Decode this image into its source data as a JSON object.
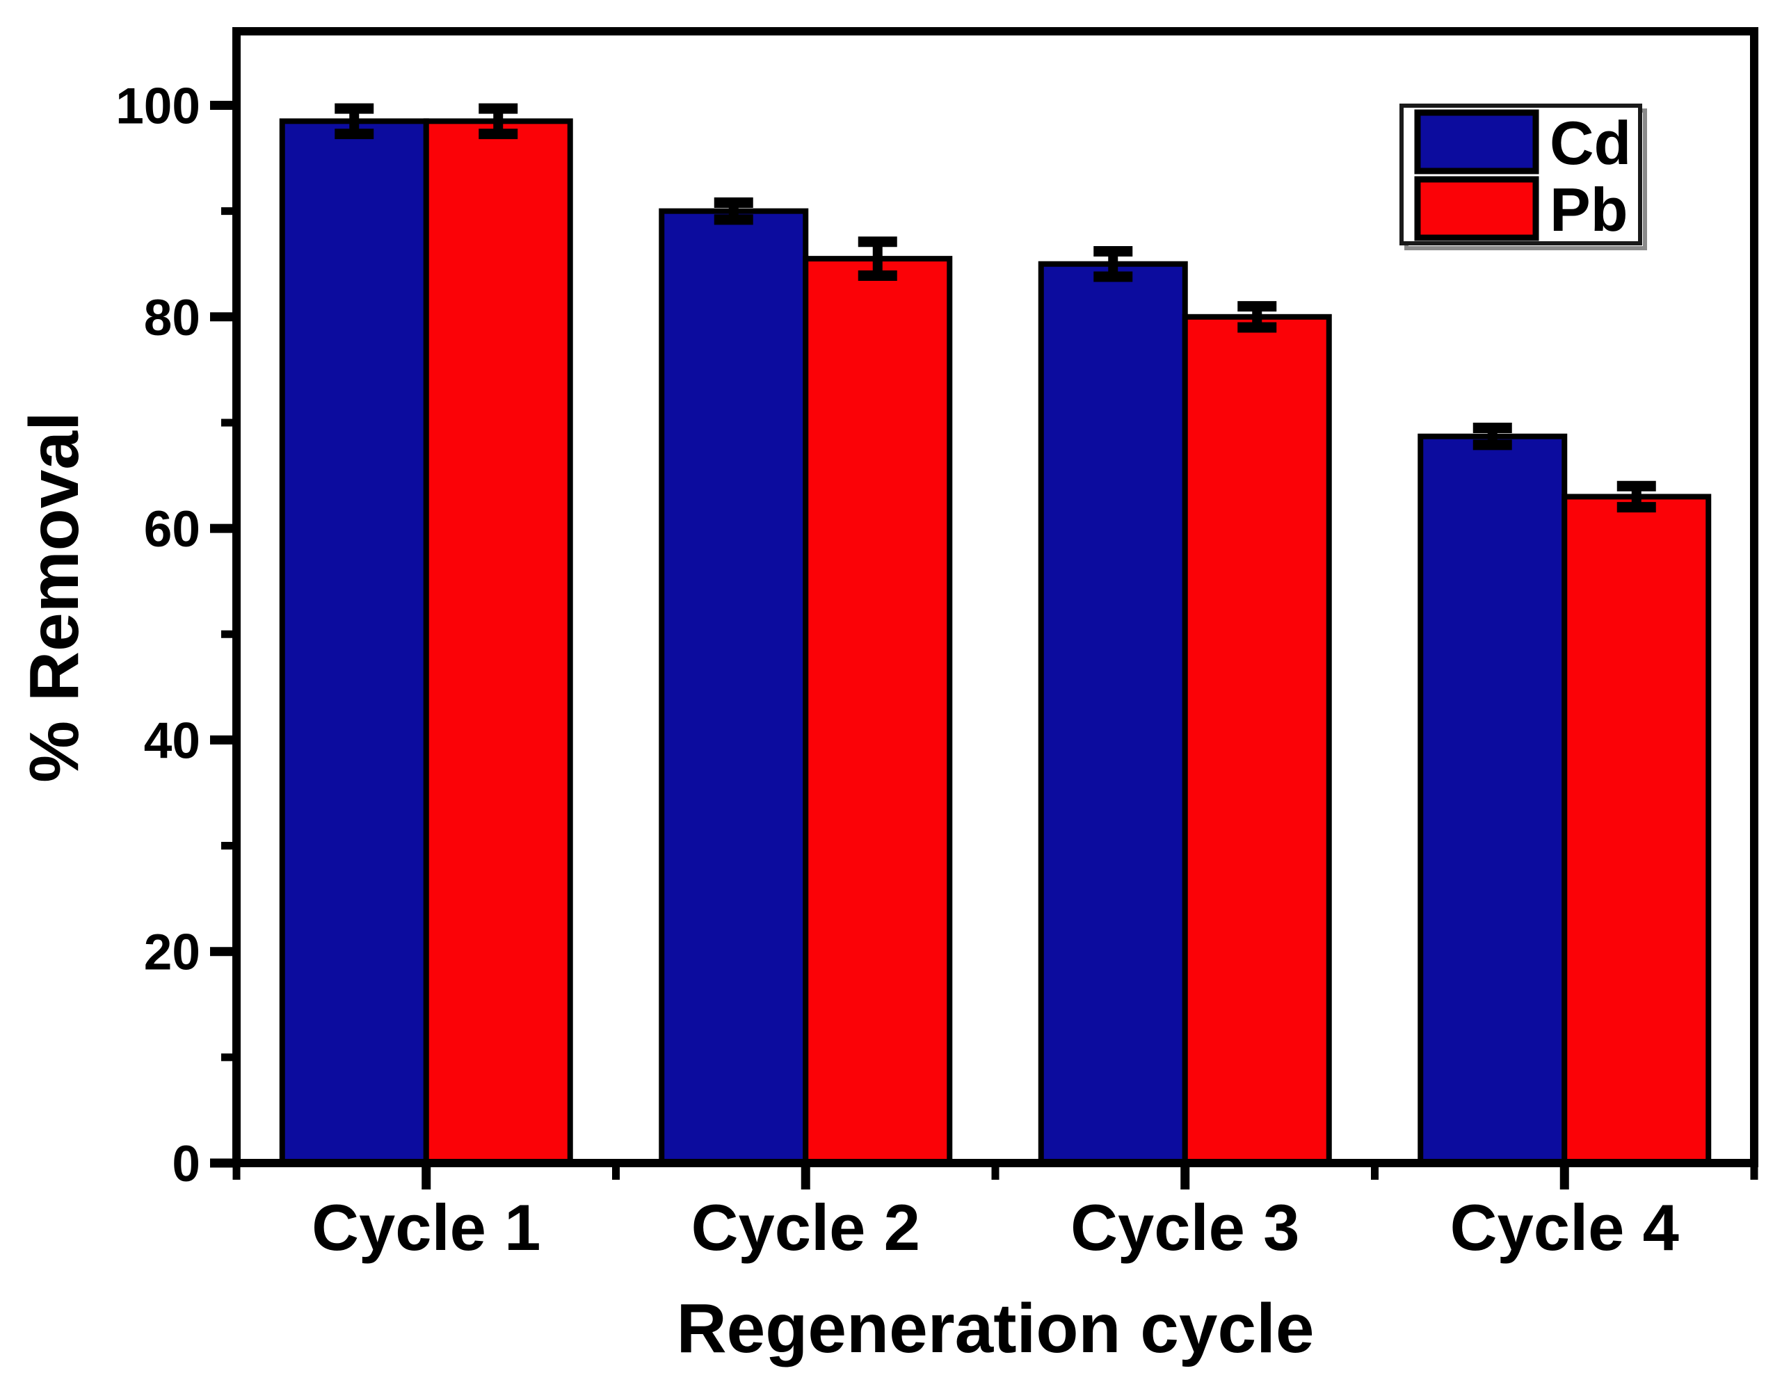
{
  "chart_data": {
    "type": "bar",
    "title": "",
    "categories": [
      "Cycle 1",
      "Cycle 2",
      "Cycle 3",
      "Cycle 4"
    ],
    "series": [
      {
        "name": "Cd",
        "color": "#0c0c9e",
        "values": [
          98.5,
          90.0,
          85.0,
          68.7
        ],
        "errors": [
          1.2,
          0.8,
          1.2,
          0.8
        ]
      },
      {
        "name": "Pb",
        "color": "#fb0207",
        "values": [
          98.5,
          85.5,
          80.0,
          63.0
        ],
        "errors": [
          1.2,
          1.6,
          1.0,
          1.0
        ]
      }
    ],
    "xlabel": "Regeneration cycle",
    "ylabel": "% Removal",
    "ylim": [
      0,
      107
    ],
    "yticks_major": [
      0,
      20,
      40,
      60,
      80,
      100
    ],
    "yticks_minor": [
      10,
      30,
      50,
      70,
      90
    ],
    "grid": false,
    "legend_position": "top-right",
    "legend_entries": [
      "Cd",
      "Pb"
    ],
    "bar_outline_color": "#000000",
    "error_bar_color": "#000000",
    "axis_color": "#000000"
  }
}
